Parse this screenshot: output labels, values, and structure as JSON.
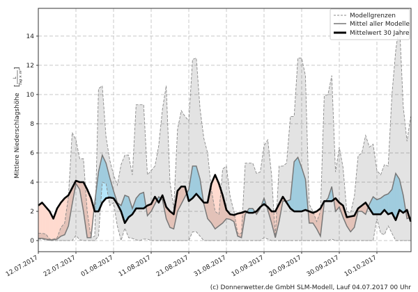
{
  "chart_data": {
    "type": "line",
    "title": "",
    "ylabel": "Mittlere Niederschlagshöhe",
    "yunit_num": "L",
    "yunit_den": "Tag × m²",
    "xlabel": "",
    "x_start": "12.07.2017",
    "x_step_days": 1,
    "xtick_labels": [
      "12.07.2017",
      "22.07.2017",
      "01.08.2017",
      "11.08.2017",
      "21.08.2017",
      "31.08.2017",
      "10.09.2017",
      "20.09.2017",
      "30.09.2017",
      "10.10.2017"
    ],
    "yticks": [
      0,
      2,
      4,
      6,
      8,
      10,
      12,
      14
    ],
    "ylim": [
      -0.76,
      15.9
    ],
    "grid": true,
    "legend_position": "top-right",
    "series": [
      {
        "name": "Modellgrenzen",
        "role": "upper",
        "style": "dashed",
        "color": "#888888",
        "values": [
          0.5,
          0.5,
          0.45,
          0.1,
          0.1,
          0.2,
          0.9,
          1.2,
          3.0,
          7.4,
          6.9,
          5.6,
          5.6,
          2.0,
          0.2,
          0.3,
          10.4,
          10.6,
          7.1,
          5.5,
          4.5,
          3.8,
          5.2,
          5.85,
          5.85,
          4.5,
          9.3,
          9.3,
          9.3,
          4.5,
          4.8,
          5.1,
          6.5,
          9.0,
          10.6,
          4.0,
          2.2,
          7.6,
          8.9,
          8.5,
          8.2,
          12.4,
          12.5,
          9.0,
          7.0,
          6.0,
          3.5,
          2.0,
          1.8,
          4.9,
          5.1,
          3.0,
          2.0,
          0.5,
          0.5,
          5.3,
          5.3,
          5.3,
          4.6,
          4.7,
          6.5,
          6.9,
          4.5,
          0.3,
          5.1,
          5.1,
          5.3,
          8.5,
          8.5,
          12.5,
          12.5,
          11.3,
          2.5,
          2.0,
          1.3,
          2.0,
          9.9,
          10.0,
          11.3,
          4.7,
          6.4,
          5.0,
          2.0,
          1.9,
          3.0,
          5.8,
          6.0,
          7.2,
          6.4,
          6.6,
          4.8,
          4.5,
          5.2,
          5.1,
          10.0,
          13.0,
          14.9,
          9.2,
          6.8,
          8.5
        ]
      },
      {
        "name": "Modellgrenzen",
        "role": "lower",
        "style": "dashed",
        "color": "#888888",
        "values": [
          0.1,
          0.1,
          0.05,
          0,
          0,
          0,
          0,
          0,
          0,
          0,
          0.35,
          0.05,
          0,
          0,
          0,
          0,
          0.3,
          4.0,
          3.9,
          2.4,
          2.6,
          1.0,
          0,
          0.85,
          0.2,
          0.15,
          0.05,
          0,
          0.1,
          0.1,
          0,
          0,
          0,
          0,
          0,
          0,
          0,
          0,
          0,
          0,
          0,
          0.6,
          0.6,
          0.3,
          0,
          0,
          0,
          0,
          0,
          0,
          0,
          0,
          0,
          0,
          0,
          0,
          0,
          0,
          0,
          0,
          0.2,
          0.1,
          0,
          0,
          0,
          0,
          0,
          0,
          0,
          0,
          0,
          0,
          0,
          0,
          0,
          0,
          0,
          0,
          0.1,
          0,
          0,
          0,
          0,
          0,
          0,
          0,
          0,
          0,
          0,
          0,
          1.5,
          0.5,
          0.4,
          1.0,
          0.5,
          0,
          0,
          0,
          0,
          0
        ]
      },
      {
        "name": "Mittel aller Modelle",
        "role": "mean",
        "style": "solid",
        "color": "#777777",
        "values": [
          0.15,
          0.15,
          0.1,
          0.05,
          0.05,
          0.1,
          0.3,
          0.4,
          1.0,
          2.5,
          3.9,
          3.5,
          2.0,
          0.2,
          0.2,
          2.6,
          4.7,
          5.85,
          5.3,
          4.3,
          3.4,
          2.6,
          2.4,
          3.1,
          3.0,
          2.2,
          2.9,
          3.2,
          3.3,
          1.7,
          2.0,
          2.5,
          3.0,
          2.8,
          1.5,
          0.9,
          0.8,
          2.0,
          2.5,
          3.0,
          3.5,
          5.1,
          5.1,
          4.2,
          2.5,
          1.5,
          1.2,
          0.8,
          1.0,
          1.2,
          1.5,
          1.45,
          1.3,
          0.3,
          0.2,
          1.8,
          2.2,
          2.2,
          1.8,
          2.2,
          2.9,
          2.1,
          1.2,
          0.2,
          1.3,
          2.7,
          2.7,
          2.8,
          5.4,
          5.7,
          5.0,
          4.2,
          1.2,
          1.2,
          0.8,
          0.3,
          2.6,
          2.9,
          3.7,
          2.0,
          2.3,
          1.6,
          1.0,
          0.6,
          0.9,
          2.0,
          2.0,
          1.8,
          2.5,
          3.0,
          2.8,
          2.9,
          3.1,
          3.2,
          3.5,
          4.6,
          4.2,
          3.1,
          1.5,
          1.6
        ]
      },
      {
        "name": "Mittelwert 30 Jahre",
        "role": "climate",
        "style": "solid-bold",
        "color": "#000000",
        "values": [
          2.4,
          2.6,
          2.3,
          2.0,
          1.5,
          2.2,
          2.6,
          2.9,
          3.1,
          3.6,
          4.1,
          4.0,
          4.0,
          3.5,
          2.9,
          2.0,
          2.0,
          2.6,
          2.9,
          2.95,
          2.9,
          2.5,
          2.0,
          1.2,
          1.6,
          1.8,
          2.2,
          2.2,
          2.2,
          2.4,
          2.5,
          3.0,
          2.6,
          3.1,
          2.3,
          2.0,
          1.8,
          3.4,
          3.7,
          3.7,
          2.7,
          2.9,
          3.2,
          2.9,
          2.6,
          2.6,
          3.9,
          4.5,
          3.9,
          3.1,
          2.1,
          1.8,
          1.75,
          1.85,
          1.9,
          2.0,
          1.9,
          1.9,
          2.0,
          2.3,
          2.5,
          2.3,
          2.0,
          2.0,
          2.5,
          3.0,
          2.6,
          2.2,
          2.0,
          2.0,
          2.0,
          2.1,
          2.0,
          1.9,
          2.0,
          2.2,
          2.7,
          2.7,
          2.7,
          2.9,
          2.6,
          2.4,
          1.6,
          1.65,
          1.7,
          2.2,
          2.4,
          2.6,
          2.2,
          1.8,
          1.8,
          1.8,
          2.1,
          1.8,
          1.9,
          1.4,
          2.1,
          1.9,
          2.1,
          1.3
        ]
      }
    ],
    "colors": {
      "above_climate": "#b4e6fa",
      "below_climate": "#ffdacf",
      "band": "#000000"
    }
  },
  "footer": "(c) Donnerwetter.de GmbH SLM-Modell, Lauf 04.07.2017 00 Uhr"
}
